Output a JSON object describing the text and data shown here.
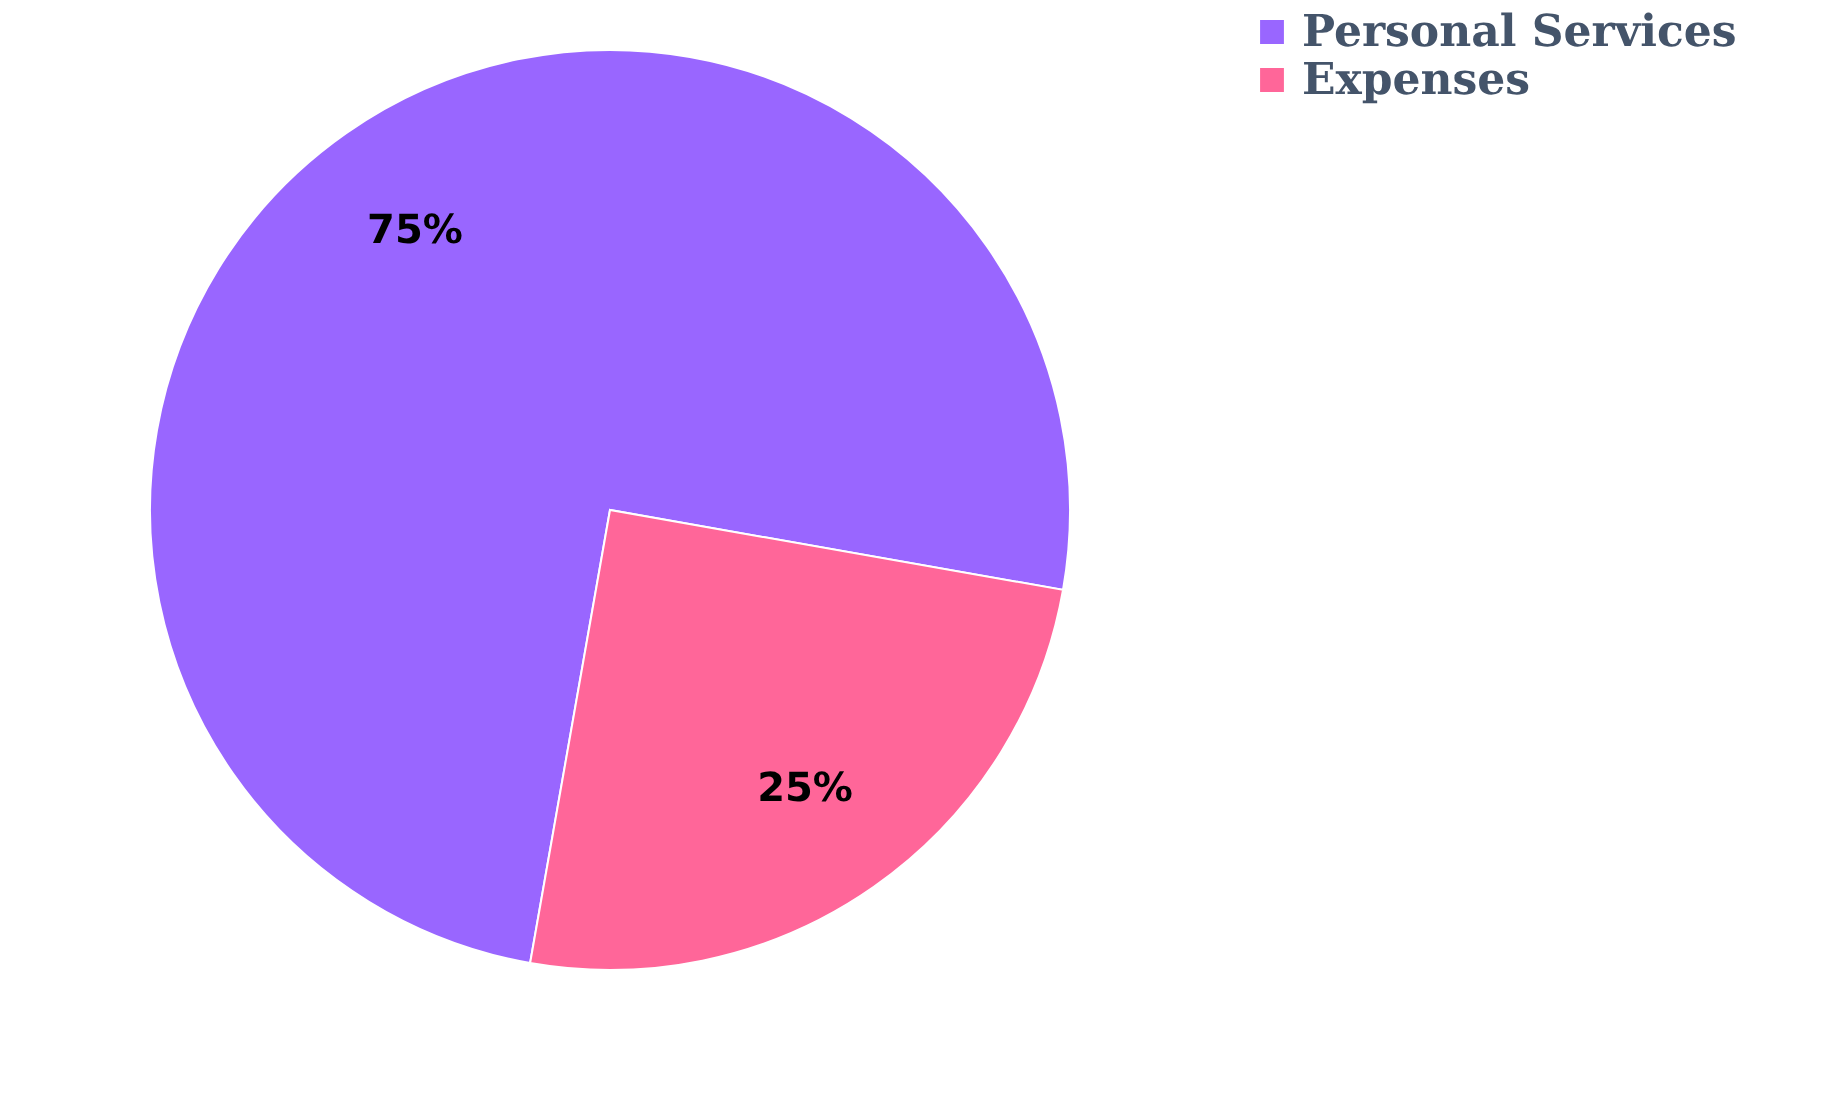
{
  "chart_data": {
    "type": "pie",
    "categories": [
      "Personal Services",
      "Expenses"
    ],
    "values": [
      75,
      25
    ],
    "colors": [
      "#9966ff",
      "#ff6699"
    ],
    "value_labels": [
      "75%",
      "25%"
    ],
    "legend": "right"
  }
}
